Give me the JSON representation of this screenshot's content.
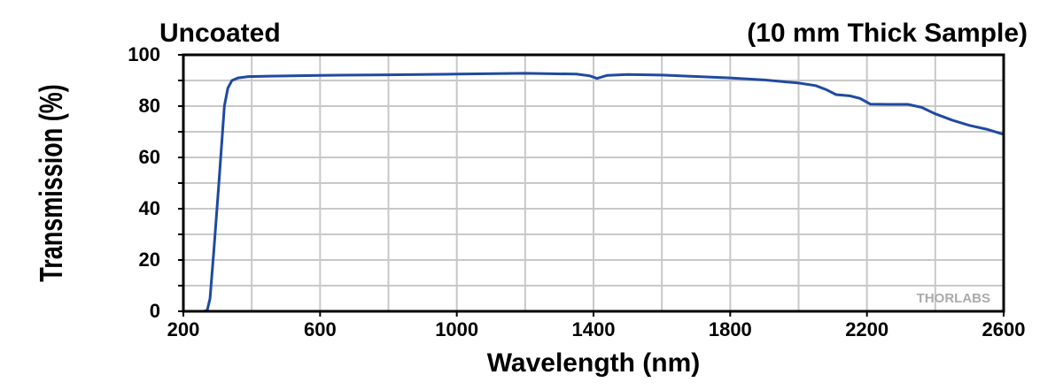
{
  "chart_data": {
    "type": "line",
    "title_left": "Uncoated",
    "title_right": "(10 mm Thick Sample)",
    "xlabel": "Wavelength (nm)",
    "ylabel": "Transmission (%)",
    "xlim": [
      200,
      2600
    ],
    "ylim": [
      0,
      100
    ],
    "xticks": [
      200,
      600,
      1000,
      1400,
      1800,
      2200,
      2600
    ],
    "yticks": [
      0,
      20,
      40,
      60,
      80,
      100
    ],
    "grid": true,
    "watermark": "THORLABS",
    "line_color": "#1f4aa0",
    "series": [
      {
        "name": "Transmission",
        "x": [
          200,
          260,
          270,
          278,
          290,
          304,
          312,
          320,
          330,
          342,
          360,
          390,
          450,
          600,
          800,
          1000,
          1200,
          1350,
          1390,
          1410,
          1440,
          1500,
          1600,
          1800,
          1900,
          2000,
          2050,
          2080,
          2110,
          2150,
          2180,
          2210,
          2260,
          2320,
          2360,
          2400,
          2450,
          2500,
          2550,
          2600
        ],
        "y": [
          0,
          0,
          0.5,
          5,
          25,
          50,
          65,
          80,
          87,
          90,
          91,
          91.5,
          91.7,
          92,
          92.2,
          92.5,
          92.8,
          92.5,
          91.8,
          90.8,
          92,
          92.3,
          92.1,
          91,
          90.2,
          89,
          88,
          86.5,
          84.5,
          84,
          83,
          80.8,
          80.7,
          80.7,
          79.5,
          77,
          74.5,
          72.5,
          71,
          69
        ]
      }
    ]
  }
}
